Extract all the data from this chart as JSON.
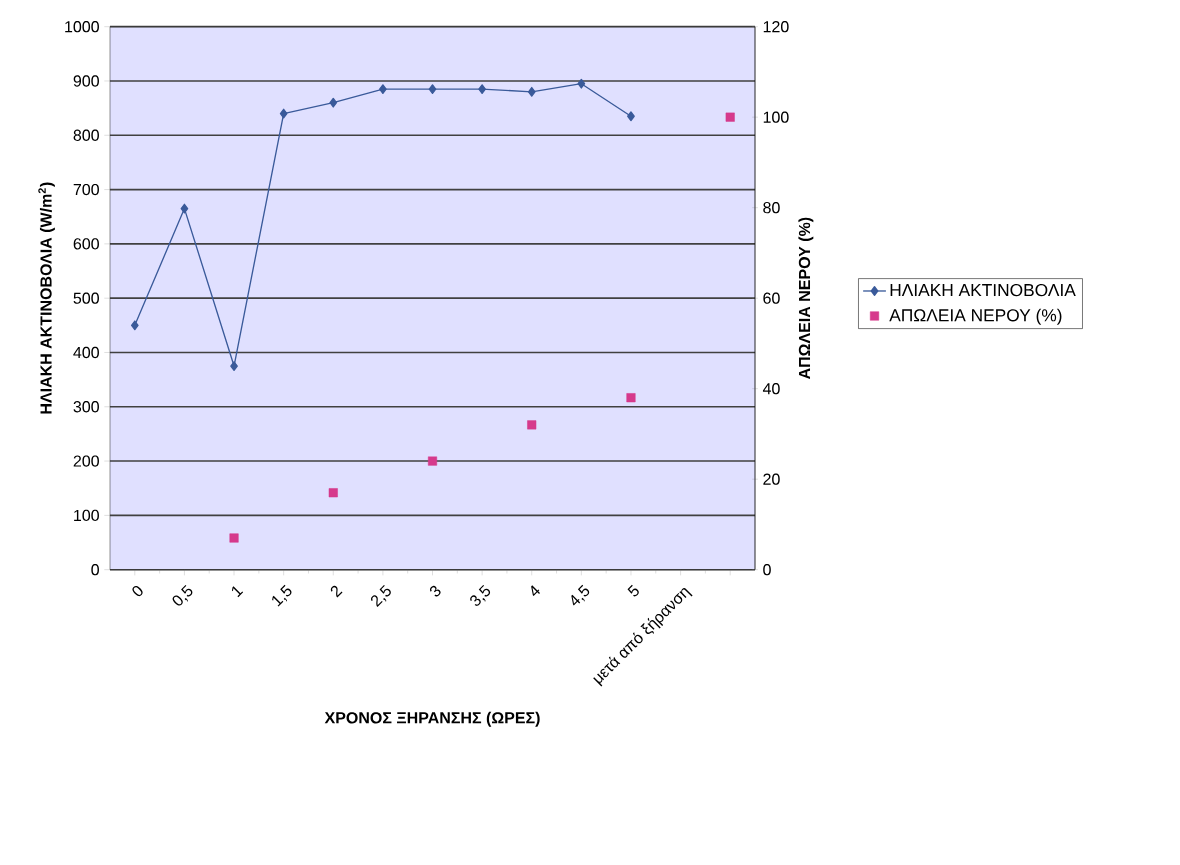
{
  "chart_data": {
    "type": "line",
    "categories": [
      "0",
      "0,5",
      "1",
      "1,5",
      "2",
      "2,5",
      "3",
      "3,5",
      "4",
      "4,5",
      "5",
      "μετά από ξήρανση",
      null
    ],
    "xlabel": "ΧΡΟΝΟΣ ΞΗΡΑΝΣΗΣ (ΩΡΕΣ)",
    "ylabel": "ΗΛΙΑΚΗ ΑΚΤΙΝΟΒΟΛΙΑ (W/m$^{2}$)",
    "y2label": "ΑΠΩΛΕΙΑ ΝΕΡΟΥ (%)",
    "series": [
      {
        "name": "ΗΛΙΑΚΗ ΑΚΤΙΝΟΒΟΛΙΑ",
        "color": "#3a5a9a",
        "marker": "diamond",
        "values": [
          450,
          665,
          375,
          840,
          860,
          885,
          885,
          885,
          880,
          895,
          835,
          null,
          null
        ]
      },
      {
        "name": "ΑΠΩΛΕΙΑ ΝΕΡΟΥ (%)",
        "type": "scatter",
        "axis": "y2",
        "color": "#d63a8c",
        "marker": "square",
        "values": [
          null,
          null,
          7,
          null,
          17,
          null,
          24,
          null,
          32,
          null,
          38,
          null,
          100
        ]
      }
    ],
    "ylim": [
      0,
      1000
    ],
    "yticks": [
      0,
      100,
      200,
      300,
      400,
      500,
      600,
      700,
      800,
      900,
      1000
    ],
    "y2lim": [
      0,
      120
    ],
    "y2ticks": [
      0,
      20,
      40,
      60,
      80,
      100,
      120
    ],
    "grid": "y",
    "legend": "right"
  }
}
